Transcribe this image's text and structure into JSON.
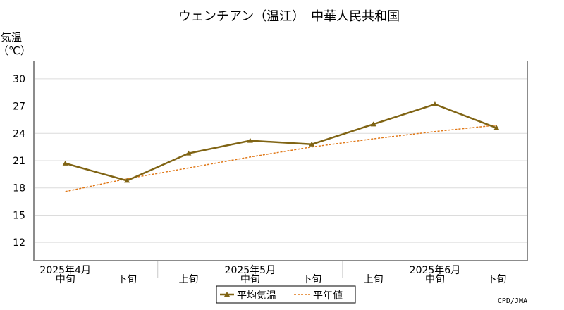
{
  "chart_data": {
    "type": "line",
    "title": "ウェンチアン（温江）　中華人民共和国",
    "ylabel_line1": "気温",
    "ylabel_line2": "（℃）",
    "ylim": [
      10,
      32
    ],
    "yticks": [
      12,
      15,
      18,
      21,
      24,
      27,
      30
    ],
    "grid": true,
    "categories": [
      "中旬",
      "下旬",
      "上旬",
      "中旬",
      "下旬",
      "上旬",
      "中旬",
      "下旬"
    ],
    "month_labels": [
      {
        "label": "2025年4月",
        "index": 0
      },
      {
        "label": "2025年5月",
        "index": 3
      },
      {
        "label": "2025年6月",
        "index": 6
      }
    ],
    "series": [
      {
        "name": "平均気温",
        "color": "#806414",
        "marker": "triangle",
        "values": [
          20.7,
          18.8,
          21.8,
          23.2,
          22.8,
          25.0,
          27.2,
          24.6
        ]
      },
      {
        "name": "平年値",
        "color": "#e07818",
        "style": "dotted",
        "values": [
          17.6,
          19.0,
          20.2,
          21.4,
          22.5,
          23.4,
          24.2,
          24.9
        ]
      }
    ],
    "legend": "bottom-center",
    "credit": "CPD/JMA"
  }
}
